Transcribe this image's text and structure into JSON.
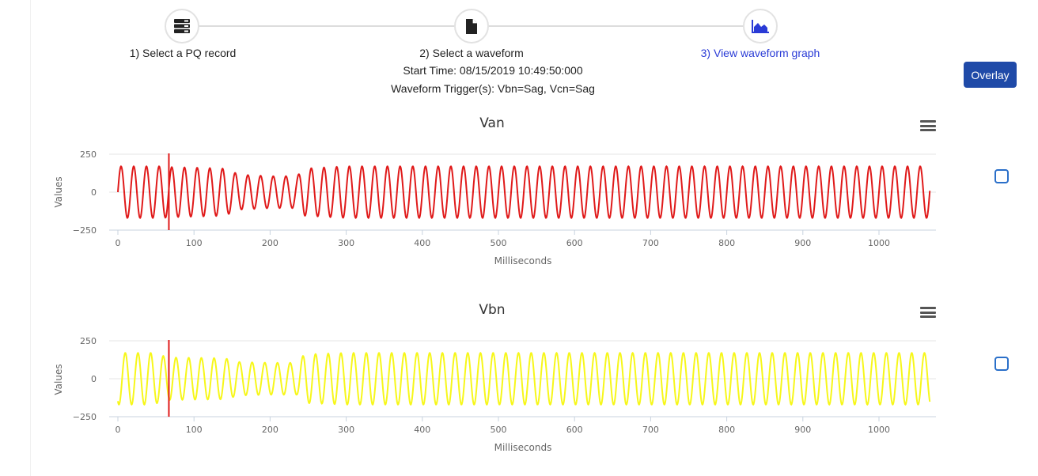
{
  "wizard": {
    "steps": [
      {
        "label": "1) Select a PQ record",
        "icon": "server-icon"
      },
      {
        "label": "2) Select a waveform",
        "icon": "file-icon"
      },
      {
        "label": "3) View waveform graph",
        "icon": "area-chart-icon"
      }
    ],
    "start_time": "Start Time: 08/15/2019 10:49:50:000",
    "triggers": "Waveform Trigger(s): Vbn=Sag, Vcn=Sag"
  },
  "overlay_label": "Overlay",
  "colors": {
    "active_step": "#2a3bd6",
    "button": "#1f4aa8",
    "van": "#e01a1a",
    "vbn": "#f7f71a",
    "trigger_line": "#e01a1a",
    "checkbox": "#2a6fc9"
  },
  "chart_data": [
    {
      "type": "line",
      "title": "Van",
      "xlabel": "Milliseconds",
      "ylabel": "Values",
      "xlim": [
        0,
        1067
      ],
      "ylim": [
        -250,
        250
      ],
      "xticks": [
        0,
        100,
        200,
        300,
        400,
        500,
        600,
        700,
        800,
        900,
        1000
      ],
      "yticks": [
        250,
        0,
        -250
      ],
      "trigger_ms": 67,
      "series": [
        {
          "color": "#e01a1a",
          "frequency_hz": 60,
          "phase_deg": 0,
          "amplitude_profile": [
            [
              0,
              170
            ],
            [
              60,
              170
            ],
            [
              67,
              165
            ],
            [
              110,
              160
            ],
            [
              140,
              155
            ],
            [
              160,
              115
            ],
            [
              200,
              105
            ],
            [
              235,
              105
            ],
            [
              245,
              155
            ],
            [
              300,
              170
            ],
            [
              1067,
              170
            ]
          ]
        }
      ]
    },
    {
      "type": "line",
      "title": "Vbn",
      "xlabel": "Milliseconds",
      "ylabel": "Values",
      "xlim": [
        0,
        1067
      ],
      "ylim": [
        -250,
        250
      ],
      "xticks": [
        0,
        100,
        200,
        300,
        400,
        500,
        600,
        700,
        800,
        900,
        1000
      ],
      "yticks": [
        250,
        0,
        -250
      ],
      "trigger_ms": 67,
      "series": [
        {
          "color": "#f7f71a",
          "frequency_hz": 60,
          "phase_deg": -120,
          "amplitude_profile": [
            [
              0,
              170
            ],
            [
              45,
              170
            ],
            [
              67,
              140
            ],
            [
              140,
              135
            ],
            [
              160,
              110
            ],
            [
              200,
              105
            ],
            [
              235,
              105
            ],
            [
              245,
              160
            ],
            [
              300,
              170
            ],
            [
              1067,
              170
            ]
          ]
        }
      ]
    }
  ]
}
